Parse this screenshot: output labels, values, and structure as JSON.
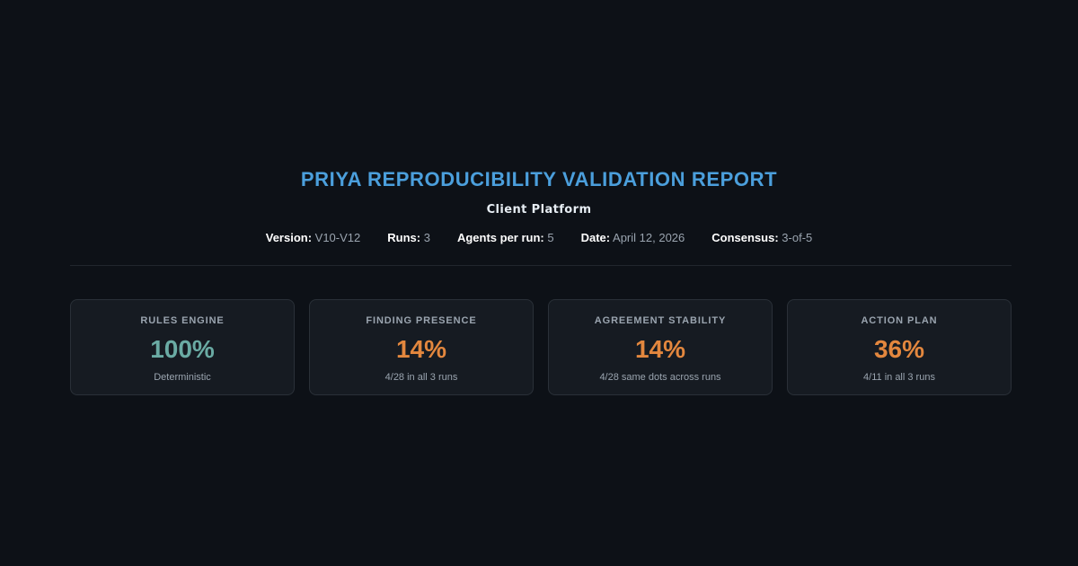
{
  "report": {
    "title": "PRIYA REPRODUCIBILITY VALIDATION REPORT",
    "subtitle": "Client Platform",
    "meta": [
      {
        "key": "Version:",
        "value": "V10-V12"
      },
      {
        "key": "Runs:",
        "value": "3"
      },
      {
        "key": "Agents per run:",
        "value": "5"
      },
      {
        "key": "Date:",
        "value": "April 12, 2026"
      },
      {
        "key": "Consensus:",
        "value": "3-of-5"
      }
    ]
  },
  "cards": [
    {
      "label": "RULES ENGINE",
      "value": "100%",
      "note": "Deterministic",
      "color": "#6aaba4"
    },
    {
      "label": "FINDING PRESENCE",
      "value": "14%",
      "note": "4/28 in all 3 runs",
      "color": "#e3873e"
    },
    {
      "label": "AGREEMENT STABILITY",
      "value": "14%",
      "note": "4/28 same dots across runs",
      "color": "#e3873e"
    },
    {
      "label": "ACTION PLAN",
      "value": "36%",
      "note": "4/11 in all 3 runs",
      "color": "#e3873e"
    }
  ],
  "colors": {
    "background": "#0d1117",
    "title": "#4b9fdc",
    "card_background": "#161b22",
    "card_border": "#2a3038",
    "muted_text": "#9aa4af"
  }
}
